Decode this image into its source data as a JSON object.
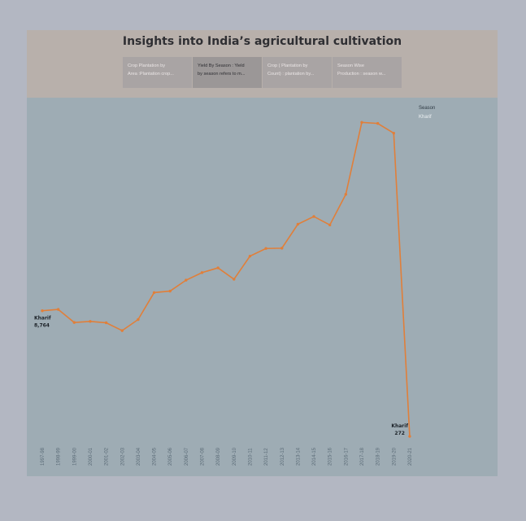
{
  "title": "Insights into India’s agricultural cultivation",
  "tabs": [
    {
      "line1": "Crop Plantation by",
      "line2": "Area :Plantation crop..."
    },
    {
      "line1": "Yield By Season : Yield",
      "line2": "by season refers to m..."
    },
    {
      "line1": "Crop ( Plantation by",
      "line2": "Count) : plantation by..."
    },
    {
      "line1": "Season Wise",
      "line2": "Production : season w..."
    }
  ],
  "active_tab": 1,
  "legend": {
    "title": "Season",
    "item": "Kharif"
  },
  "colors": {
    "line": "#e07f3a",
    "plot_bg": "#9eacb4",
    "header_bg": "#b8b0ab"
  },
  "chart_data": {
    "type": "line",
    "categories": [
      "1997-98",
      "1998-99",
      "1999-00",
      "2000-01",
      "2001-02",
      "2002-03",
      "2003-04",
      "2004-05",
      "2005-06",
      "2006-07",
      "2007-08",
      "2008-09",
      "2009-10",
      "2010-11",
      "2011-12",
      "2012-13",
      "2013-14",
      "2014-15",
      "2015-16",
      "2016-17",
      "2017-18",
      "2018-19",
      "2019-20",
      "2020-21"
    ],
    "series": [
      {
        "name": "Kharif",
        "values": [
          8764,
          8850,
          7970,
          8040,
          7950,
          7420,
          8170,
          9990,
          10090,
          10830,
          11340,
          11660,
          10890,
          12450,
          12970,
          12990,
          14610,
          15130,
          14560,
          16630,
          21490,
          21420,
          20760,
          272
        ]
      }
    ],
    "annotations": [
      {
        "series": "Kharif",
        "index": 0,
        "label": "Kharif",
        "value_text": "8,764"
      },
      {
        "series": "Kharif",
        "index": 23,
        "label": "Kharif",
        "value_text": "272"
      }
    ],
    "ylim": [
      0,
      22500
    ],
    "grid": false,
    "legend_position": "top-right",
    "xlabel": "",
    "ylabel": ""
  }
}
